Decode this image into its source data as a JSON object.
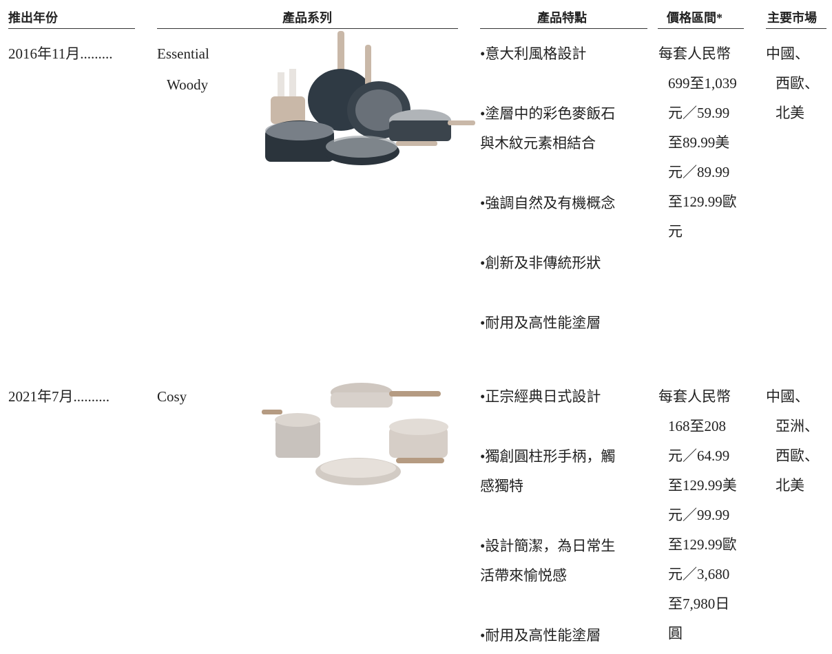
{
  "table": {
    "headers": [
      "推出年份",
      "產品系列",
      "產品特點",
      "價格區間*",
      "主要市場"
    ],
    "rows": [
      {
        "year": "2016年11月.........",
        "series": [
          "Essential",
          "Woody"
        ],
        "features": [
          [
            "•意大利風格設計"
          ],
          [
            "•塗層中的彩色麥飯石",
            "與木紋元素相結合"
          ],
          [
            "•強調自然及有機概念"
          ],
          [
            "•創新及非傳統形狀"
          ],
          [
            "•耐用及高性能塗層"
          ]
        ],
        "price": [
          "每套人民幣",
          "699至1,039",
          "元／59.99",
          "至89.99美",
          "元／89.99",
          "至129.99歐",
          "元"
        ],
        "markets": [
          "中國、",
          "西歐、",
          "北美"
        ]
      },
      {
        "year": "2021年7月..........",
        "series": [
          "Cosy"
        ],
        "features": [
          [
            "•正宗經典日式設計"
          ],
          [
            "•獨創圓柱形手柄，觸",
            "感獨特"
          ],
          [
            "•設計簡潔，為日常生",
            "活帶來愉悦感"
          ],
          [
            "•耐用及高性能塗層"
          ]
        ],
        "price": [
          "每套人民幣",
          "168至208",
          "元／64.99",
          "至129.99美",
          "元／99.99",
          "至129.99歐",
          "元／3,680",
          "至7,980日",
          "圓"
        ],
        "markets": [
          "中國、",
          "亞洲、",
          "西歐、",
          "北美"
        ]
      }
    ]
  }
}
